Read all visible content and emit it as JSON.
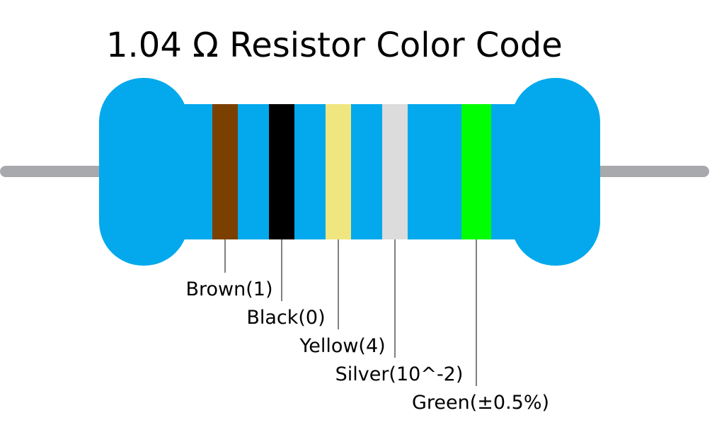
{
  "title": "1.04 Ω Resistor Color Code",
  "bands": [
    {
      "label": "Brown(1)",
      "color": "#7b3f00"
    },
    {
      "label": "Black(0)",
      "color": "#000000"
    },
    {
      "label": "Yellow(4)",
      "color": "#f0e67f"
    },
    {
      "label": "Silver(10^-2)",
      "color": "#dcdcdc"
    },
    {
      "label": "Green(±0.5%)",
      "color": "#00ff00"
    }
  ]
}
